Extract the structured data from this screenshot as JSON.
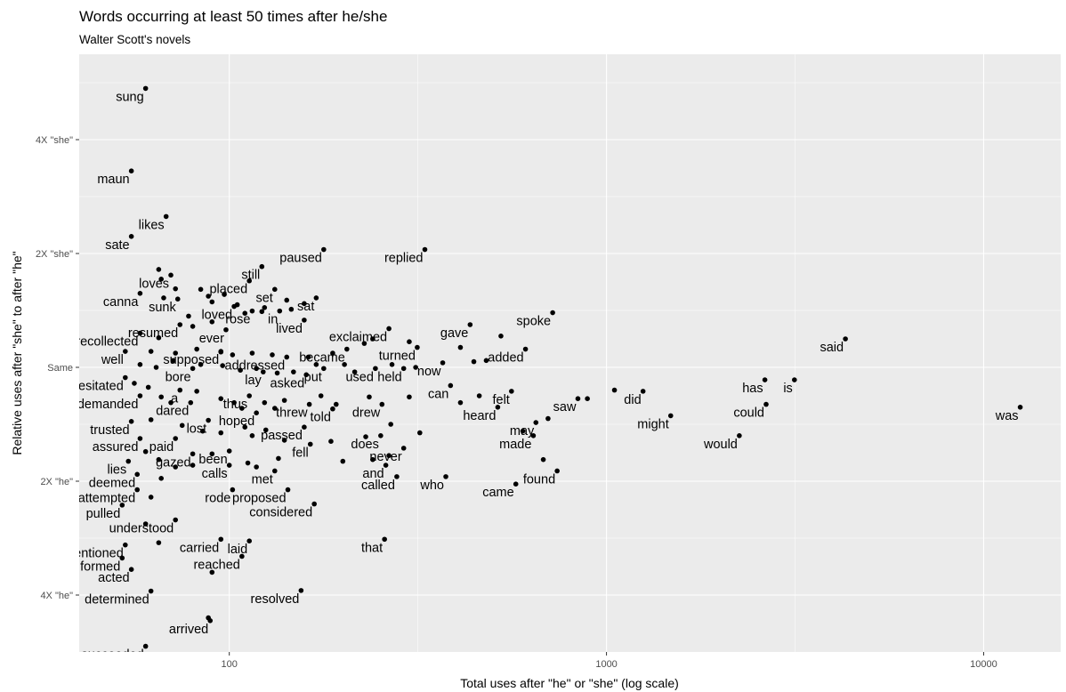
{
  "chart_data": {
    "type": "scatter",
    "title": "Words occurring at least 50 times after he/she",
    "subtitle": "Walter Scott's novels",
    "xlabel": "Total uses after \"he\" or \"she\" (log scale)",
    "ylabel": "Relative uses after \"she\" to after \"he\"",
    "x_scale": "log10",
    "xlim": [
      40,
      16000
    ],
    "ylim": [
      -5.0,
      5.5
    ],
    "x_ticks": [
      100,
      1000,
      10000
    ],
    "x_tick_labels": [
      "100",
      "1000",
      "10000"
    ],
    "y_ticks": [
      4,
      2,
      0,
      -2,
      -4
    ],
    "y_tick_labels": [
      "4X \"she\"",
      "2X \"she\"",
      "Same",
      "2X \"he\"",
      "4X \"he\""
    ],
    "grid": true,
    "labeled_points": [
      {
        "word": "sung",
        "x": 60,
        "y": 4.9
      },
      {
        "word": "maun",
        "x": 55,
        "y": 3.45
      },
      {
        "word": "likes",
        "x": 68,
        "y": 2.65
      },
      {
        "word": "sate",
        "x": 55,
        "y": 2.3
      },
      {
        "word": "paused",
        "x": 178,
        "y": 2.07
      },
      {
        "word": "replied",
        "x": 330,
        "y": 2.07
      },
      {
        "word": "loves",
        "x": 70,
        "y": 1.62
      },
      {
        "word": "still",
        "x": 122,
        "y": 1.77
      },
      {
        "word": "placed",
        "x": 113,
        "y": 1.52
      },
      {
        "word": "set",
        "x": 132,
        "y": 1.37
      },
      {
        "word": "canna",
        "x": 58,
        "y": 1.3
      },
      {
        "word": "sunk",
        "x": 73,
        "y": 1.2
      },
      {
        "word": "sat",
        "x": 170,
        "y": 1.22
      },
      {
        "word": "loved",
        "x": 103,
        "y": 1.07
      },
      {
        "word": "rose",
        "x": 115,
        "y": 0.99
      },
      {
        "word": "in",
        "x": 136,
        "y": 0.99
      },
      {
        "word": "lived",
        "x": 158,
        "y": 0.83
      },
      {
        "word": "spoke",
        "x": 720,
        "y": 0.96
      },
      {
        "word": "resumed",
        "x": 74,
        "y": 0.75
      },
      {
        "word": "ever",
        "x": 98,
        "y": 0.66
      },
      {
        "word": "gave",
        "x": 435,
        "y": 0.75
      },
      {
        "word": "recollected",
        "x": 58,
        "y": 0.6
      },
      {
        "word": "exclaimed",
        "x": 265,
        "y": 0.68
      },
      {
        "word": "turned",
        "x": 315,
        "y": 0.35
      },
      {
        "word": "said",
        "x": 4300,
        "y": 0.5
      },
      {
        "word": "became",
        "x": 205,
        "y": 0.32
      },
      {
        "word": "added",
        "x": 610,
        "y": 0.32
      },
      {
        "word": "well",
        "x": 53,
        "y": 0.28
      },
      {
        "word": "supposed",
        "x": 95,
        "y": 0.28
      },
      {
        "word": "addressed",
        "x": 142,
        "y": 0.18
      },
      {
        "word": "now",
        "x": 368,
        "y": 0.08
      },
      {
        "word": "bore",
        "x": 80,
        "y": -0.02
      },
      {
        "word": "lay",
        "x": 123,
        "y": -0.08
      },
      {
        "word": "asked",
        "x": 160,
        "y": -0.13
      },
      {
        "word": "put",
        "x": 178,
        "y": -0.02
      },
      {
        "word": "used",
        "x": 244,
        "y": -0.02
      },
      {
        "word": "held",
        "x": 290,
        "y": -0.02
      },
      {
        "word": "hesitated",
        "x": 53,
        "y": -0.18
      },
      {
        "word": "can",
        "x": 386,
        "y": -0.32
      },
      {
        "word": "has",
        "x": 2630,
        "y": -0.22
      },
      {
        "word": "is",
        "x": 3150,
        "y": -0.22
      },
      {
        "word": "demanded",
        "x": 58,
        "y": -0.5
      },
      {
        "word": "a",
        "x": 74,
        "y": -0.4
      },
      {
        "word": "felt",
        "x": 560,
        "y": -0.42
      },
      {
        "word": "did",
        "x": 1250,
        "y": -0.42
      },
      {
        "word": "thus",
        "x": 113,
        "y": -0.5
      },
      {
        "word": "saw",
        "x": 840,
        "y": -0.55
      },
      {
        "word": "dared",
        "x": 79,
        "y": -0.62
      },
      {
        "word": "threw",
        "x": 163,
        "y": -0.65
      },
      {
        "word": "drew",
        "x": 254,
        "y": -0.65
      },
      {
        "word": "heard",
        "x": 515,
        "y": -0.7
      },
      {
        "word": "could",
        "x": 2650,
        "y": -0.65
      },
      {
        "word": "told",
        "x": 188,
        "y": -0.73
      },
      {
        "word": "hoped",
        "x": 118,
        "y": -0.8
      },
      {
        "word": "lost",
        "x": 88,
        "y": -0.93
      },
      {
        "word": "trusted",
        "x": 55,
        "y": -0.95
      },
      {
        "word": "might",
        "x": 1480,
        "y": -0.85
      },
      {
        "word": "was",
        "x": 12500,
        "y": -0.7
      },
      {
        "word": "may",
        "x": 650,
        "y": -0.97
      },
      {
        "word": "passed",
        "x": 158,
        "y": -1.05
      },
      {
        "word": "assured",
        "x": 58,
        "y": -1.25
      },
      {
        "word": "paid",
        "x": 72,
        "y": -1.25
      },
      {
        "word": "does",
        "x": 252,
        "y": -1.2
      },
      {
        "word": "made",
        "x": 640,
        "y": -1.2
      },
      {
        "word": "would",
        "x": 2250,
        "y": -1.2
      },
      {
        "word": "fell",
        "x": 164,
        "y": -1.35
      },
      {
        "word": "been",
        "x": 100,
        "y": -1.47
      },
      {
        "word": "never",
        "x": 290,
        "y": -1.42
      },
      {
        "word": "gazed",
        "x": 80,
        "y": -1.52
      },
      {
        "word": "lies",
        "x": 54,
        "y": -1.65
      },
      {
        "word": "calls",
        "x": 100,
        "y": -1.72
      },
      {
        "word": "and",
        "x": 260,
        "y": -1.72
      },
      {
        "word": "met",
        "x": 132,
        "y": -1.82
      },
      {
        "word": "found",
        "x": 740,
        "y": -1.82
      },
      {
        "word": "deemed",
        "x": 57,
        "y": -1.88
      },
      {
        "word": "called",
        "x": 278,
        "y": -1.92
      },
      {
        "word": "who",
        "x": 375,
        "y": -1.92
      },
      {
        "word": "came",
        "x": 575,
        "y": -2.05
      },
      {
        "word": "attempted",
        "x": 57,
        "y": -2.15
      },
      {
        "word": "rode",
        "x": 102,
        "y": -2.15
      },
      {
        "word": "proposed",
        "x": 143,
        "y": -2.15
      },
      {
        "word": "pulled",
        "x": 52,
        "y": -2.42
      },
      {
        "word": "considered",
        "x": 168,
        "y": -2.4
      },
      {
        "word": "understood",
        "x": 72,
        "y": -2.68
      },
      {
        "word": "carried",
        "x": 95,
        "y": -3.02
      },
      {
        "word": "laid",
        "x": 113,
        "y": -3.05
      },
      {
        "word": "that",
        "x": 258,
        "y": -3.02
      },
      {
        "word": "mentioned",
        "x": 53,
        "y": -3.12
      },
      {
        "word": "reached",
        "x": 108,
        "y": -3.32
      },
      {
        "word": "formed",
        "x": 52,
        "y": -3.35
      },
      {
        "word": "acted",
        "x": 55,
        "y": -3.55
      },
      {
        "word": "determined",
        "x": 62,
        "y": -3.93
      },
      {
        "word": "resolved",
        "x": 155,
        "y": -3.92
      },
      {
        "word": "arrived",
        "x": 89,
        "y": -4.45
      },
      {
        "word": "succeeded",
        "x": 60,
        "y": -4.9
      }
    ],
    "extra_points": [
      {
        "x": 65,
        "y": 1.72
      },
      {
        "x": 66,
        "y": 1.55
      },
      {
        "x": 72,
        "y": 1.38
      },
      {
        "x": 84,
        "y": 1.37
      },
      {
        "x": 88,
        "y": 1.25
      },
      {
        "x": 97,
        "y": 1.28
      },
      {
        "x": 105,
        "y": 1.1
      },
      {
        "x": 124,
        "y": 1.05
      },
      {
        "x": 142,
        "y": 1.18
      },
      {
        "x": 146,
        "y": 1.02
      },
      {
        "x": 158,
        "y": 1.12
      },
      {
        "x": 67,
        "y": 1.22
      },
      {
        "x": 90,
        "y": 1.15
      },
      {
        "x": 78,
        "y": 0.9
      },
      {
        "x": 90,
        "y": 0.8
      },
      {
        "x": 80,
        "y": 0.72
      },
      {
        "x": 110,
        "y": 0.95
      },
      {
        "x": 122,
        "y": 0.98
      },
      {
        "x": 65,
        "y": 0.52
      },
      {
        "x": 62,
        "y": 0.28
      },
      {
        "x": 72,
        "y": 0.25
      },
      {
        "x": 82,
        "y": 0.32
      },
      {
        "x": 95,
        "y": 0.27
      },
      {
        "x": 102,
        "y": 0.22
      },
      {
        "x": 115,
        "y": 0.25
      },
      {
        "x": 130,
        "y": 0.22
      },
      {
        "x": 162,
        "y": 0.18
      },
      {
        "x": 188,
        "y": 0.25
      },
      {
        "x": 228,
        "y": 0.42
      },
      {
        "x": 240,
        "y": 0.5
      },
      {
        "x": 300,
        "y": 0.45
      },
      {
        "x": 410,
        "y": 0.35
      },
      {
        "x": 445,
        "y": 0.1
      },
      {
        "x": 480,
        "y": 0.12
      },
      {
        "x": 525,
        "y": 0.55
      },
      {
        "x": 58,
        "y": 0.05
      },
      {
        "x": 64,
        "y": 0.0
      },
      {
        "x": 71,
        "y": 0.12
      },
      {
        "x": 84,
        "y": 0.05
      },
      {
        "x": 96,
        "y": 0.03
      },
      {
        "x": 107,
        "y": -0.05
      },
      {
        "x": 118,
        "y": -0.02
      },
      {
        "x": 134,
        "y": -0.1
      },
      {
        "x": 148,
        "y": -0.08
      },
      {
        "x": 170,
        "y": 0.05
      },
      {
        "x": 202,
        "y": 0.05
      },
      {
        "x": 215,
        "y": -0.08
      },
      {
        "x": 270,
        "y": 0.05
      },
      {
        "x": 312,
        "y": 0.0
      },
      {
        "x": 56,
        "y": -0.28
      },
      {
        "x": 61,
        "y": -0.35
      },
      {
        "x": 66,
        "y": -0.52
      },
      {
        "x": 70,
        "y": -0.62
      },
      {
        "x": 82,
        "y": -0.42
      },
      {
        "x": 95,
        "y": -0.55
      },
      {
        "x": 103,
        "y": -0.62
      },
      {
        "x": 108,
        "y": -0.72
      },
      {
        "x": 124,
        "y": -0.62
      },
      {
        "x": 132,
        "y": -0.72
      },
      {
        "x": 140,
        "y": -0.58
      },
      {
        "x": 175,
        "y": -0.5
      },
      {
        "x": 192,
        "y": -0.65
      },
      {
        "x": 235,
        "y": -0.52
      },
      {
        "x": 300,
        "y": -0.52
      },
      {
        "x": 410,
        "y": -0.62
      },
      {
        "x": 460,
        "y": -0.5
      },
      {
        "x": 890,
        "y": -0.55
      },
      {
        "x": 1050,
        "y": -0.4
      },
      {
        "x": 62,
        "y": -0.92
      },
      {
        "x": 75,
        "y": -1.02
      },
      {
        "x": 85,
        "y": -1.12
      },
      {
        "x": 95,
        "y": -1.15
      },
      {
        "x": 110,
        "y": -1.05
      },
      {
        "x": 115,
        "y": -1.2
      },
      {
        "x": 125,
        "y": -1.1
      },
      {
        "x": 140,
        "y": -1.28
      },
      {
        "x": 186,
        "y": -1.3
      },
      {
        "x": 230,
        "y": -1.22
      },
      {
        "x": 268,
        "y": -1.0
      },
      {
        "x": 320,
        "y": -1.15
      },
      {
        "x": 600,
        "y": -1.12
      },
      {
        "x": 700,
        "y": -0.9
      },
      {
        "x": 60,
        "y": -1.48
      },
      {
        "x": 65,
        "y": -1.62
      },
      {
        "x": 72,
        "y": -1.75
      },
      {
        "x": 80,
        "y": -1.72
      },
      {
        "x": 90,
        "y": -1.52
      },
      {
        "x": 112,
        "y": -1.68
      },
      {
        "x": 118,
        "y": -1.75
      },
      {
        "x": 135,
        "y": -1.6
      },
      {
        "x": 200,
        "y": -1.65
      },
      {
        "x": 240,
        "y": -1.62
      },
      {
        "x": 265,
        "y": -1.55
      },
      {
        "x": 680,
        "y": -1.62
      },
      {
        "x": 66,
        "y": -1.95
      },
      {
        "x": 62,
        "y": -2.28
      },
      {
        "x": 60,
        "y": -2.75
      },
      {
        "x": 65,
        "y": -3.08
      },
      {
        "x": 90,
        "y": -3.6
      },
      {
        "x": 88,
        "y": -4.4
      }
    ]
  }
}
